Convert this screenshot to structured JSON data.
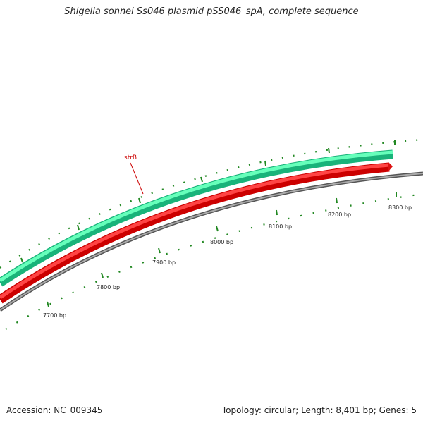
{
  "title": "Shigella sonnei Ss046 plasmid pSS046_spA, complete sequence",
  "footer": {
    "accession": "Accession: NC_009345",
    "summary": "Topology: circular; Length: 8,401 bp; Genes: 5"
  },
  "map": {
    "ticks": [
      "7700 bp",
      "7800 bp",
      "7900 bp",
      "8000 bp",
      "8100 bp",
      "8200 bp",
      "8300 bp"
    ],
    "gene_label": "strB",
    "colors": {
      "forward_feature": "#33ee99",
      "reverse_feature": "#ee1111",
      "backbone": "#888888",
      "ticks": "#228822",
      "gene_label": "#cc0000"
    }
  }
}
